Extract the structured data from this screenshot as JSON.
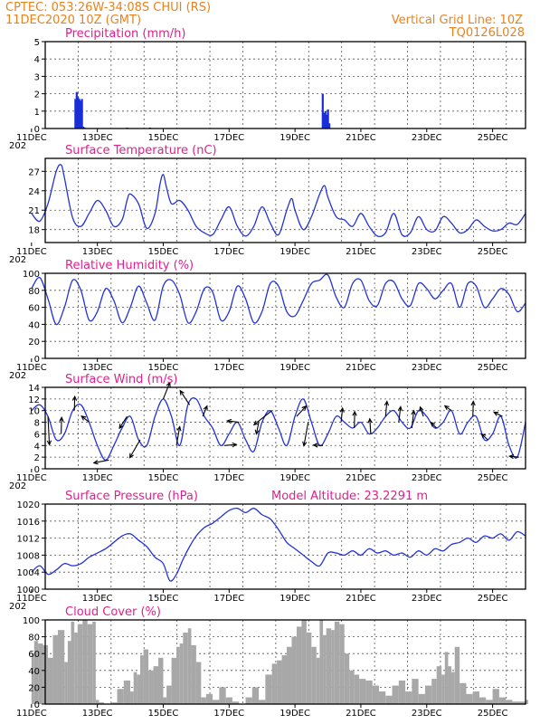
{
  "header": {
    "left_line1": "CPTEC:   053:26W-34:08S   CHUI (RS)",
    "left_line2": "11DEC2020 10Z (GMT)",
    "right_line1": "Vertical Grid Line: 10Z",
    "right_line2": "TQ0126L028"
  },
  "x_axis": {
    "tick_labels": [
      "11DEC",
      "13DEC",
      "15DEC",
      "17DEC",
      "19DEC",
      "21DEC",
      "23DEC",
      "25DEC"
    ],
    "year_fragment": "202",
    "start": "11DEC2020 10Z",
    "end_day": 26
  },
  "colors": {
    "header": "#e8821e",
    "title": "#e0208c",
    "line": "#2333d6",
    "bar_precip": "#1a2ed8",
    "bar_cloud": "#a8a8a8"
  },
  "chart_data": [
    {
      "type": "bar",
      "title": "Precipitation (mm/h)",
      "ylim": [
        0,
        5
      ],
      "yticks": [
        0,
        1,
        2,
        3,
        4,
        5
      ],
      "x_days": [
        12.33,
        12.37,
        12.41,
        12.45,
        12.49,
        12.53,
        12.57,
        12.61,
        13.9,
        14.6,
        19.84,
        19.88,
        19.92,
        19.96,
        20.0,
        20.04
      ],
      "values": [
        1.7,
        2.1,
        1.8,
        1.7,
        1.6,
        1.7,
        0.1,
        0.05,
        0.05,
        0.05,
        2.0,
        0.9,
        1.0,
        0.8,
        1.1,
        0.3
      ]
    },
    {
      "type": "line",
      "title": "Surface Temperature (nC)",
      "ylim": [
        16,
        29
      ],
      "yticks": [
        18,
        21,
        24,
        27
      ],
      "x_days": [
        11.0,
        11.25,
        11.5,
        11.75,
        11.9,
        12.0,
        12.25,
        12.5,
        12.75,
        13.0,
        13.25,
        13.5,
        13.75,
        13.9,
        14.0,
        14.25,
        14.5,
        14.75,
        14.9,
        15.0,
        15.1,
        15.25,
        15.5,
        15.75,
        16.0,
        16.25,
        16.5,
        16.75,
        17.0,
        17.25,
        17.5,
        17.75,
        18.0,
        18.25,
        18.5,
        18.75,
        18.9,
        19.0,
        19.25,
        19.5,
        19.75,
        19.9,
        20.0,
        20.25,
        20.5,
        20.75,
        21.0,
        21.25,
        21.5,
        21.75,
        22.0,
        22.25,
        22.5,
        22.75,
        23.0,
        23.25,
        23.5,
        23.75,
        24.0,
        24.25,
        24.5,
        24.75,
        25.0,
        25.25,
        25.5,
        25.75,
        26.0
      ],
      "values": [
        20.5,
        19.3,
        22.0,
        27.0,
        28.0,
        26.0,
        19.8,
        18.5,
        20.5,
        22.5,
        21.0,
        18.5,
        19.5,
        22.5,
        23.5,
        22.0,
        18.2,
        20.5,
        25.0,
        26.5,
        24.5,
        22.0,
        22.5,
        21.0,
        18.5,
        17.5,
        17.2,
        19.5,
        21.5,
        18.5,
        17.0,
        18.5,
        21.5,
        19.0,
        17.2,
        21.0,
        22.8,
        21.0,
        18.0,
        20.0,
        23.5,
        24.8,
        23.0,
        20.0,
        19.5,
        18.5,
        20.5,
        18.5,
        17.0,
        17.5,
        20.5,
        17.2,
        17.5,
        20.0,
        18.0,
        17.8,
        20.0,
        19.0,
        17.5,
        18.0,
        19.5,
        18.5,
        17.8,
        18.0,
        19.0,
        18.8,
        20.5
      ]
    },
    {
      "type": "line",
      "title": "Relative Humidity (%)",
      "ylim": [
        0,
        100
      ],
      "yticks": [
        0,
        20,
        40,
        60,
        80,
        100
      ],
      "x_days": [
        11.0,
        11.25,
        11.5,
        11.75,
        12.0,
        12.25,
        12.5,
        12.75,
        13.0,
        13.25,
        13.5,
        13.75,
        14.0,
        14.25,
        14.5,
        14.75,
        15.0,
        15.25,
        15.5,
        15.75,
        16.0,
        16.25,
        16.5,
        16.75,
        17.0,
        17.25,
        17.5,
        17.75,
        18.0,
        18.25,
        18.5,
        18.75,
        19.0,
        19.25,
        19.5,
        19.75,
        20.0,
        20.25,
        20.5,
        20.75,
        21.0,
        21.25,
        21.5,
        21.75,
        22.0,
        22.25,
        22.5,
        22.75,
        23.0,
        23.25,
        23.5,
        23.75,
        24.0,
        24.25,
        24.5,
        24.75,
        25.0,
        25.25,
        25.5,
        25.75,
        26.0
      ],
      "values": [
        82,
        95,
        70,
        40,
        60,
        92,
        80,
        45,
        55,
        82,
        68,
        42,
        60,
        85,
        65,
        45,
        85,
        92,
        75,
        42,
        55,
        82,
        78,
        45,
        55,
        85,
        70,
        42,
        55,
        88,
        85,
        55,
        50,
        68,
        88,
        92,
        98,
        72,
        60,
        88,
        92,
        68,
        62,
        88,
        90,
        70,
        62,
        88,
        82,
        70,
        80,
        88,
        60,
        88,
        85,
        60,
        70,
        82,
        75,
        55,
        65
      ]
    },
    {
      "type": "line",
      "title": "Surface Wind (m/s)",
      "ylim": [
        0,
        14
      ],
      "yticks": [
        0,
        2,
        4,
        6,
        8,
        10,
        12,
        14
      ],
      "x_days": [
        11.0,
        11.25,
        11.5,
        11.75,
        12.0,
        12.25,
        12.5,
        12.75,
        13.0,
        13.25,
        13.5,
        13.75,
        14.0,
        14.25,
        14.5,
        14.75,
        15.0,
        15.25,
        15.5,
        15.75,
        16.0,
        16.25,
        16.5,
        16.75,
        17.0,
        17.25,
        17.5,
        17.75,
        18.0,
        18.25,
        18.5,
        18.75,
        19.0,
        19.25,
        19.5,
        19.75,
        20.0,
        20.25,
        20.5,
        20.75,
        21.0,
        21.25,
        21.5,
        21.75,
        22.0,
        22.25,
        22.5,
        22.75,
        23.0,
        23.25,
        23.5,
        23.75,
        24.0,
        24.25,
        24.5,
        24.75,
        25.0,
        25.25,
        25.5,
        25.75,
        26.0
      ],
      "values": [
        10,
        11,
        9,
        5,
        6,
        10,
        11,
        8,
        4,
        1.5,
        4,
        7,
        9,
        5,
        4,
        9,
        12,
        9,
        4,
        11,
        12,
        9,
        7,
        4,
        6,
        8,
        5,
        3,
        8,
        10,
        7,
        4,
        9,
        12,
        8,
        4,
        6,
        9,
        8,
        7,
        8,
        6,
        7,
        9,
        10,
        8,
        7,
        10,
        9,
        7,
        8,
        10,
        6,
        8,
        9,
        5,
        6,
        9,
        4,
        2,
        8
      ],
      "wind_arrows": [
        {
          "day": 11.5,
          "u": 0.3,
          "v": -6.0
        },
        {
          "day": 11.9,
          "u": 0.1,
          "v": 3.5
        },
        {
          "day": 12.3,
          "u": 0.1,
          "v": 3.0
        },
        {
          "day": 12.75,
          "u": -1.6,
          "v": 1.3
        },
        {
          "day": 13.35,
          "u": -3.2,
          "v": -0.6
        },
        {
          "day": 13.9,
          "u": -1.6,
          "v": -2.5
        },
        {
          "day": 14.3,
          "u": -2.2,
          "v": -3.8
        },
        {
          "day": 15.0,
          "u": 1.4,
          "v": 3.5
        },
        {
          "day": 15.4,
          "u": 0.7,
          "v": 4.0
        },
        {
          "day": 15.8,
          "u": -2.0,
          "v": 3.0
        },
        {
          "day": 16.2,
          "u": 0.9,
          "v": 2.2
        },
        {
          "day": 16.85,
          "u": 2.6,
          "v": 0.2
        },
        {
          "day": 17.3,
          "u": -2.5,
          "v": 0.3
        },
        {
          "day": 17.9,
          "u": -0.5,
          "v": -2.5
        },
        {
          "day": 18.3,
          "u": -3.8,
          "v": -3.0
        },
        {
          "day": 19.05,
          "u": 2.0,
          "v": 2.2
        },
        {
          "day": 19.4,
          "u": -0.9,
          "v": -5.0
        },
        {
          "day": 19.85,
          "u": -2.0,
          "v": 0.1
        },
        {
          "day": 20.4,
          "u": 0.3,
          "v": 3.0
        },
        {
          "day": 20.8,
          "u": 0.1,
          "v": 3.5
        },
        {
          "day": 21.3,
          "u": -0.2,
          "v": 3.2
        },
        {
          "day": 21.75,
          "u": 0.3,
          "v": 3.2
        },
        {
          "day": 22.15,
          "u": 0.4,
          "v": 3.3
        },
        {
          "day": 22.55,
          "u": 0.4,
          "v": 3.7
        },
        {
          "day": 22.9,
          "u": -0.7,
          "v": 2.0
        },
        {
          "day": 23.3,
          "u": -1.2,
          "v": 1.2
        },
        {
          "day": 23.75,
          "u": -1.4,
          "v": 1.0
        },
        {
          "day": 24.4,
          "u": 0.1,
          "v": 3.2
        },
        {
          "day": 24.85,
          "u": -1.3,
          "v": 1.2
        },
        {
          "day": 25.3,
          "u": -1.8,
          "v": 0.9
        },
        {
          "day": 25.8,
          "u": -2.0,
          "v": 0.2
        }
      ]
    },
    {
      "type": "line",
      "title": "Surface Pressure (hPa)",
      "annotation": "Model Altitude: 23.2291 m",
      "ylim": [
        1000,
        1020
      ],
      "yticks": [
        1000,
        1004,
        1008,
        1012,
        1016,
        1020
      ],
      "x_days": [
        11.0,
        11.25,
        11.5,
        11.75,
        12.0,
        12.25,
        12.5,
        12.75,
        13.0,
        13.25,
        13.5,
        13.75,
        14.0,
        14.25,
        14.5,
        14.75,
        15.0,
        15.2,
        15.4,
        15.6,
        15.8,
        16.0,
        16.25,
        16.5,
        16.75,
        17.0,
        17.25,
        17.5,
        17.75,
        18.0,
        18.25,
        18.5,
        18.75,
        19.0,
        19.25,
        19.5,
        19.75,
        20.0,
        20.25,
        20.5,
        20.75,
        21.0,
        21.25,
        21.5,
        21.75,
        22.0,
        22.25,
        22.5,
        22.75,
        23.0,
        23.25,
        23.5,
        23.75,
        24.0,
        24.25,
        24.5,
        24.75,
        25.0,
        25.25,
        25.5,
        25.75,
        26.0
      ],
      "values": [
        1004.0,
        1005.5,
        1003.5,
        1004.5,
        1006.0,
        1005.5,
        1006.0,
        1007.5,
        1008.5,
        1009.5,
        1011.0,
        1012.5,
        1013.0,
        1011.5,
        1010.0,
        1007.5,
        1006.0,
        1002.0,
        1003.5,
        1007.0,
        1010.0,
        1012.5,
        1014.5,
        1015.5,
        1017.0,
        1018.5,
        1019.0,
        1018.0,
        1019.0,
        1017.5,
        1016.5,
        1014.0,
        1011.0,
        1009.5,
        1008.0,
        1006.5,
        1005.5,
        1008.5,
        1008.5,
        1008.0,
        1009.0,
        1008.0,
        1009.5,
        1008.5,
        1009.0,
        1008.0,
        1008.5,
        1007.5,
        1009.0,
        1008.0,
        1009.5,
        1009.0,
        1010.5,
        1011.0,
        1012.0,
        1011.0,
        1012.5,
        1012.0,
        1013.0,
        1011.5,
        1013.5,
        1012.5
      ]
    },
    {
      "type": "area",
      "title": "Cloud Cover (%)",
      "ylim": [
        0,
        100
      ],
      "yticks": [
        0,
        20,
        40,
        60,
        80,
        100
      ],
      "x_days": [
        11.0,
        11.08,
        11.2,
        11.35,
        11.5,
        11.65,
        11.8,
        12.0,
        12.1,
        12.2,
        12.3,
        12.4,
        12.55,
        12.7,
        12.85,
        12.95,
        13.05,
        13.2,
        13.4,
        13.6,
        13.8,
        14.0,
        14.1,
        14.2,
        14.3,
        14.4,
        14.55,
        14.7,
        14.85,
        15.0,
        15.1,
        15.25,
        15.4,
        15.5,
        15.6,
        15.75,
        15.85,
        16.0,
        16.15,
        16.3,
        16.5,
        16.7,
        16.9,
        17.1,
        17.3,
        17.5,
        17.7,
        17.9,
        18.1,
        18.3,
        18.45,
        18.6,
        18.75,
        18.9,
        19.05,
        19.2,
        19.35,
        19.5,
        19.65,
        19.75,
        19.85,
        19.95,
        20.1,
        20.2,
        20.35,
        20.5,
        20.65,
        20.8,
        20.95,
        21.15,
        21.35,
        21.55,
        21.75,
        21.95,
        22.15,
        22.35,
        22.55,
        22.75,
        22.95,
        23.15,
        23.3,
        23.45,
        23.55,
        23.65,
        23.75,
        23.85,
        24.0,
        24.2,
        24.4,
        24.6,
        24.8,
        25.0,
        25.2,
        25.4,
        25.6,
        25.8,
        26.0
      ],
      "values": [
        60,
        75,
        72,
        70,
        55,
        82,
        88,
        50,
        75,
        98,
        85,
        95,
        100,
        95,
        98,
        5,
        2,
        0,
        2,
        18,
        28,
        15,
        38,
        35,
        58,
        65,
        40,
        45,
        55,
        8,
        22,
        55,
        68,
        72,
        85,
        90,
        70,
        50,
        8,
        12,
        5,
        20,
        8,
        3,
        0,
        8,
        20,
        5,
        35,
        48,
        52,
        58,
        68,
        80,
        92,
        100,
        85,
        68,
        55,
        100,
        82,
        90,
        88,
        98,
        95,
        60,
        40,
        35,
        30,
        28,
        22,
        15,
        10,
        22,
        28,
        15,
        30,
        12,
        22,
        30,
        45,
        35,
        62,
        45,
        38,
        68,
        25,
        12,
        15,
        8,
        5,
        18,
        8,
        5,
        3,
        3,
        5
      ]
    }
  ]
}
